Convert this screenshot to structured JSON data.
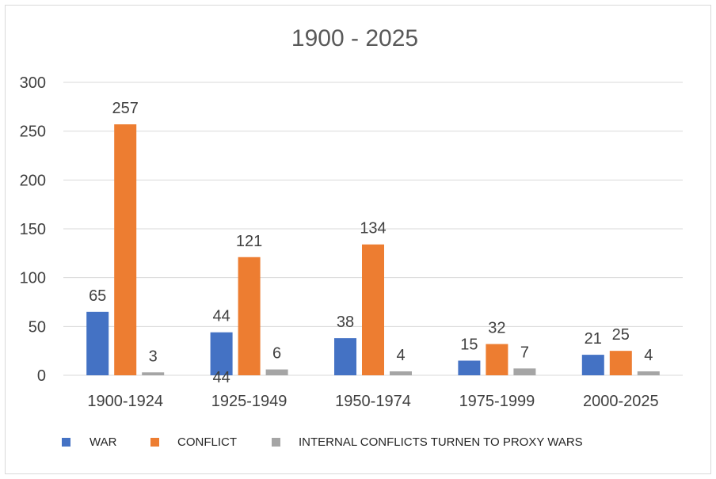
{
  "chart_data": {
    "type": "bar",
    "title": "1900 - 2025",
    "categories": [
      "1900-1924",
      "1925-1949",
      "1950-1974",
      "1975-1999",
      "2000-2025"
    ],
    "series": [
      {
        "name": "WAR",
        "color": "#4472c4",
        "values": [
          65,
          44,
          38,
          15,
          21
        ]
      },
      {
        "name": "CONFLICT",
        "color": "#ed7d31",
        "values": [
          257,
          121,
          134,
          32,
          25
        ]
      },
      {
        "name": "INTERNAL CONFLICTS TURNEN TO PROXY WARS",
        "color": "#a5a5a5",
        "values": [
          3,
          6,
          4,
          7,
          4
        ]
      }
    ],
    "ylim": [
      0,
      300
    ],
    "yticks": [
      0,
      50,
      100,
      150,
      200,
      250,
      300
    ],
    "grid": true,
    "legend": "bottom",
    "annotations": [
      "44"
    ]
  }
}
